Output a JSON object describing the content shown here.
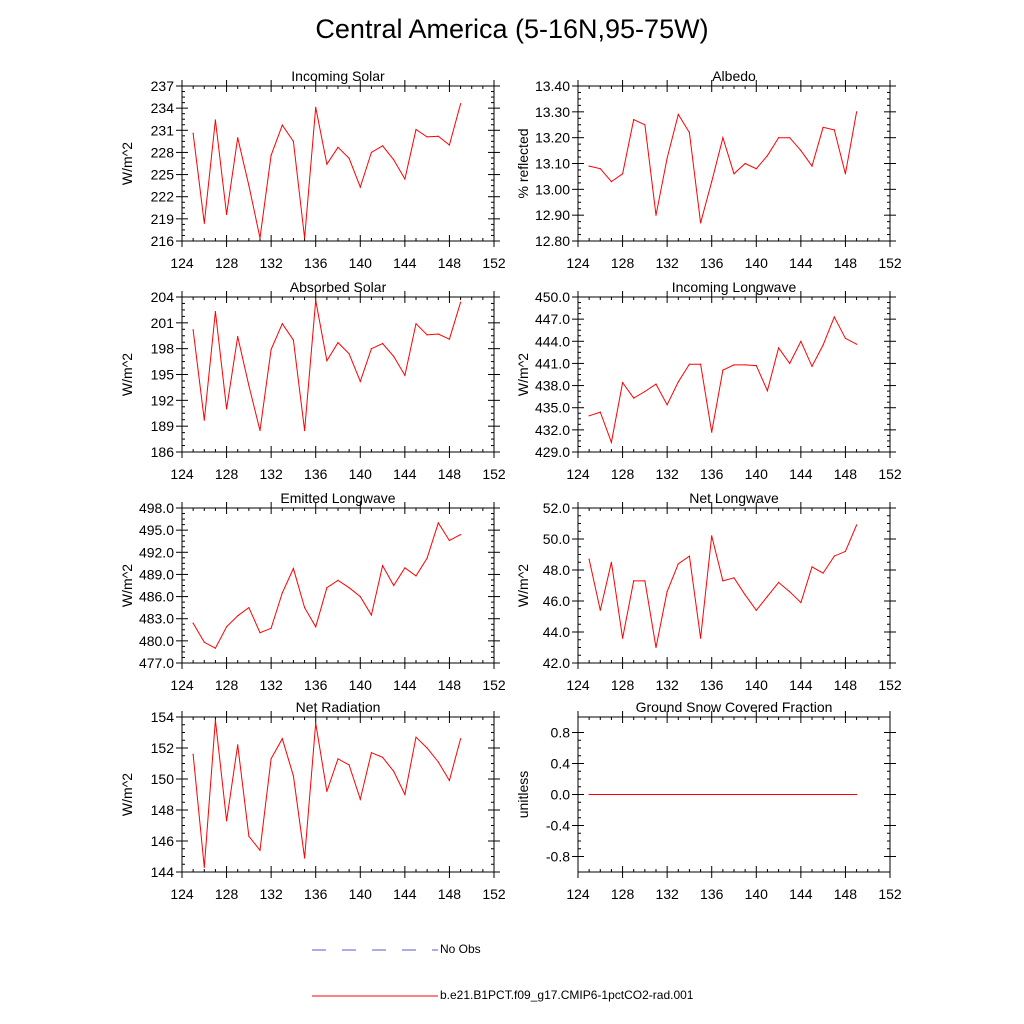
{
  "figure": {
    "title": "Central America (5-16N,95-75W)"
  },
  "legend": {
    "entries": [
      {
        "label": "No Obs",
        "style": "dashed",
        "color": "#5a5ad6"
      },
      {
        "label": "b.e21.B1PCT.f09_g17.CMIP6-1pctCO2-rad.001",
        "style": "solid",
        "color": "#ff0000"
      }
    ]
  },
  "colors": {
    "series": "#ff0000",
    "obs": "#5a5ad6",
    "axis": "#000000"
  },
  "chart_data": [
    {
      "type": "line",
      "title": "Incoming Solar",
      "ylabel": "W/m^2",
      "xlim": [
        124,
        152
      ],
      "ylim": [
        216,
        237
      ],
      "xticks": [
        124,
        128,
        132,
        136,
        140,
        144,
        148,
        152
      ],
      "yticks": [
        "216",
        "219",
        "222",
        "225",
        "228",
        "231",
        "234",
        "237"
      ],
      "x": [
        125,
        126,
        127,
        128,
        129,
        130,
        131,
        132,
        133,
        134,
        135,
        136,
        137,
        138,
        139,
        140,
        141,
        142,
        143,
        144,
        145,
        146,
        147,
        148,
        149
      ],
      "series": [
        {
          "values": [
            230.6,
            218.4,
            232.4,
            219.6,
            230.0,
            223.5,
            216.4,
            227.6,
            231.7,
            229.5,
            216.4,
            234.1,
            226.4,
            228.7,
            227.2,
            223.3,
            228.0,
            228.9,
            227.0,
            224.4,
            231.1,
            230.1,
            230.2,
            229.0,
            234.6
          ]
        }
      ]
    },
    {
      "type": "line",
      "title": "Albedo",
      "ylabel": "% reflected",
      "xlim": [
        124,
        152
      ],
      "ylim": [
        12.8,
        13.4
      ],
      "xticks": [
        124,
        128,
        132,
        136,
        140,
        144,
        148,
        152
      ],
      "yticks": [
        "12.80",
        "12.90",
        "13.00",
        "13.10",
        "13.20",
        "13.30",
        "13.40"
      ],
      "x": [
        125,
        126,
        127,
        128,
        129,
        130,
        131,
        132,
        133,
        134,
        135,
        136,
        137,
        138,
        139,
        140,
        141,
        142,
        143,
        144,
        145,
        146,
        147,
        148,
        149
      ],
      "series": [
        {
          "values": [
            13.09,
            13.08,
            13.03,
            13.06,
            13.27,
            13.25,
            12.9,
            13.12,
            13.29,
            13.22,
            12.87,
            13.03,
            13.2,
            13.06,
            13.1,
            13.08,
            13.13,
            13.2,
            13.2,
            13.15,
            13.09,
            13.24,
            13.23,
            13.06,
            13.3
          ]
        }
      ]
    },
    {
      "type": "line",
      "title": "Absorbed Solar",
      "ylabel": "W/m^2",
      "xlim": [
        124,
        152
      ],
      "ylim": [
        186,
        204
      ],
      "xticks": [
        124,
        128,
        132,
        136,
        140,
        144,
        148,
        152
      ],
      "yticks": [
        "186",
        "189",
        "192",
        "195",
        "198",
        "201",
        "204"
      ],
      "x": [
        125,
        126,
        127,
        128,
        129,
        130,
        131,
        132,
        133,
        134,
        135,
        136,
        137,
        138,
        139,
        140,
        141,
        142,
        143,
        144,
        145,
        146,
        147,
        148,
        149
      ],
      "series": [
        {
          "values": [
            200.2,
            189.7,
            202.3,
            191.0,
            199.4,
            193.7,
            188.5,
            197.9,
            200.9,
            199.0,
            188.5,
            203.6,
            196.6,
            198.7,
            197.4,
            194.2,
            198.0,
            198.6,
            197.1,
            194.9,
            200.9,
            199.6,
            199.7,
            199.1,
            203.4
          ]
        }
      ]
    },
    {
      "type": "line",
      "title": "Incoming Longwave",
      "ylabel": "W/m^2",
      "xlim": [
        124,
        152
      ],
      "ylim": [
        429,
        450
      ],
      "xticks": [
        124,
        128,
        132,
        136,
        140,
        144,
        148,
        152
      ],
      "yticks": [
        "429.0",
        "432.0",
        "435.0",
        "438.0",
        "441.0",
        "444.0",
        "447.0",
        "450.0"
      ],
      "x": [
        125,
        126,
        127,
        128,
        129,
        130,
        131,
        132,
        133,
        134,
        135,
        136,
        137,
        138,
        139,
        140,
        141,
        142,
        143,
        144,
        145,
        146,
        147,
        148,
        149
      ],
      "series": [
        {
          "values": [
            433.9,
            434.4,
            430.3,
            438.4,
            436.3,
            437.2,
            438.2,
            435.4,
            438.5,
            440.9,
            440.9,
            431.7,
            440.1,
            440.8,
            440.8,
            440.7,
            437.3,
            443.1,
            441.0,
            444.0,
            440.6,
            443.5,
            447.3,
            444.4,
            443.6
          ]
        }
      ]
    },
    {
      "type": "line",
      "title": "Emitted Longwave",
      "ylabel": "W/m^2",
      "xlim": [
        124,
        152
      ],
      "ylim": [
        477,
        498
      ],
      "xticks": [
        124,
        128,
        132,
        136,
        140,
        144,
        148,
        152
      ],
      "yticks": [
        "477.0",
        "480.0",
        "483.0",
        "486.0",
        "489.0",
        "492.0",
        "495.0",
        "498.0"
      ],
      "x": [
        125,
        126,
        127,
        128,
        129,
        130,
        131,
        132,
        133,
        134,
        135,
        136,
        137,
        138,
        139,
        140,
        141,
        142,
        143,
        144,
        145,
        146,
        147,
        148,
        149
      ],
      "series": [
        {
          "values": [
            482.4,
            479.8,
            479.0,
            481.9,
            483.4,
            484.5,
            481.1,
            481.7,
            486.5,
            489.8,
            484.5,
            481.9,
            487.2,
            488.2,
            487.2,
            486.0,
            483.5,
            490.2,
            487.5,
            489.9,
            488.8,
            491.2,
            496.0,
            493.6,
            494.4
          ]
        }
      ]
    },
    {
      "type": "line",
      "title": "Net Longwave",
      "ylabel": "W/m^2",
      "xlim": [
        124,
        152
      ],
      "ylim": [
        42,
        52
      ],
      "xticks": [
        124,
        128,
        132,
        136,
        140,
        144,
        148,
        152
      ],
      "yticks": [
        "42.0",
        "44.0",
        "46.0",
        "48.0",
        "50.0",
        "52.0"
      ],
      "x": [
        125,
        126,
        127,
        128,
        129,
        130,
        131,
        132,
        133,
        134,
        135,
        136,
        137,
        138,
        139,
        140,
        141,
        142,
        143,
        144,
        145,
        146,
        147,
        148,
        149
      ],
      "series": [
        {
          "values": [
            48.7,
            45.4,
            48.5,
            43.6,
            47.3,
            47.3,
            43.0,
            46.6,
            48.4,
            48.9,
            43.6,
            50.2,
            47.3,
            47.5,
            46.4,
            45.4,
            46.3,
            47.2,
            46.6,
            45.9,
            48.2,
            47.8,
            48.9,
            49.2,
            50.9
          ]
        }
      ]
    },
    {
      "type": "line",
      "title": "Net Radiation",
      "ylabel": "W/m^2",
      "xlim": [
        124,
        152
      ],
      "ylim": [
        144,
        154
      ],
      "xticks": [
        124,
        128,
        132,
        136,
        140,
        144,
        148,
        152
      ],
      "yticks": [
        "144",
        "146",
        "148",
        "150",
        "152",
        "154"
      ],
      "x": [
        125,
        126,
        127,
        128,
        129,
        130,
        131,
        132,
        133,
        134,
        135,
        136,
        137,
        138,
        139,
        140,
        141,
        142,
        143,
        144,
        145,
        146,
        147,
        148,
        149
      ],
      "series": [
        {
          "values": [
            151.6,
            144.3,
            153.8,
            147.3,
            152.2,
            146.3,
            145.4,
            151.3,
            152.6,
            150.2,
            144.9,
            153.6,
            149.2,
            151.3,
            150.9,
            148.7,
            151.7,
            151.4,
            150.5,
            149.0,
            152.7,
            152.0,
            151.1,
            149.9,
            152.6
          ]
        }
      ]
    },
    {
      "type": "line",
      "title": "Ground Snow Covered Fraction",
      "ylabel": "unitless",
      "xlim": [
        124,
        152
      ],
      "ylim": [
        -1.0,
        1.0
      ],
      "xticks": [
        124,
        128,
        132,
        136,
        140,
        144,
        148,
        152
      ],
      "yticks": [
        "-0.8",
        "-0.4",
        "0.0",
        "0.4",
        "0.8"
      ],
      "ytick_values": [
        -0.8,
        -0.4,
        0.0,
        0.4,
        0.8
      ],
      "x": [
        125,
        149
      ],
      "series": [
        {
          "values": [
            0.0,
            0.0
          ]
        }
      ]
    }
  ]
}
